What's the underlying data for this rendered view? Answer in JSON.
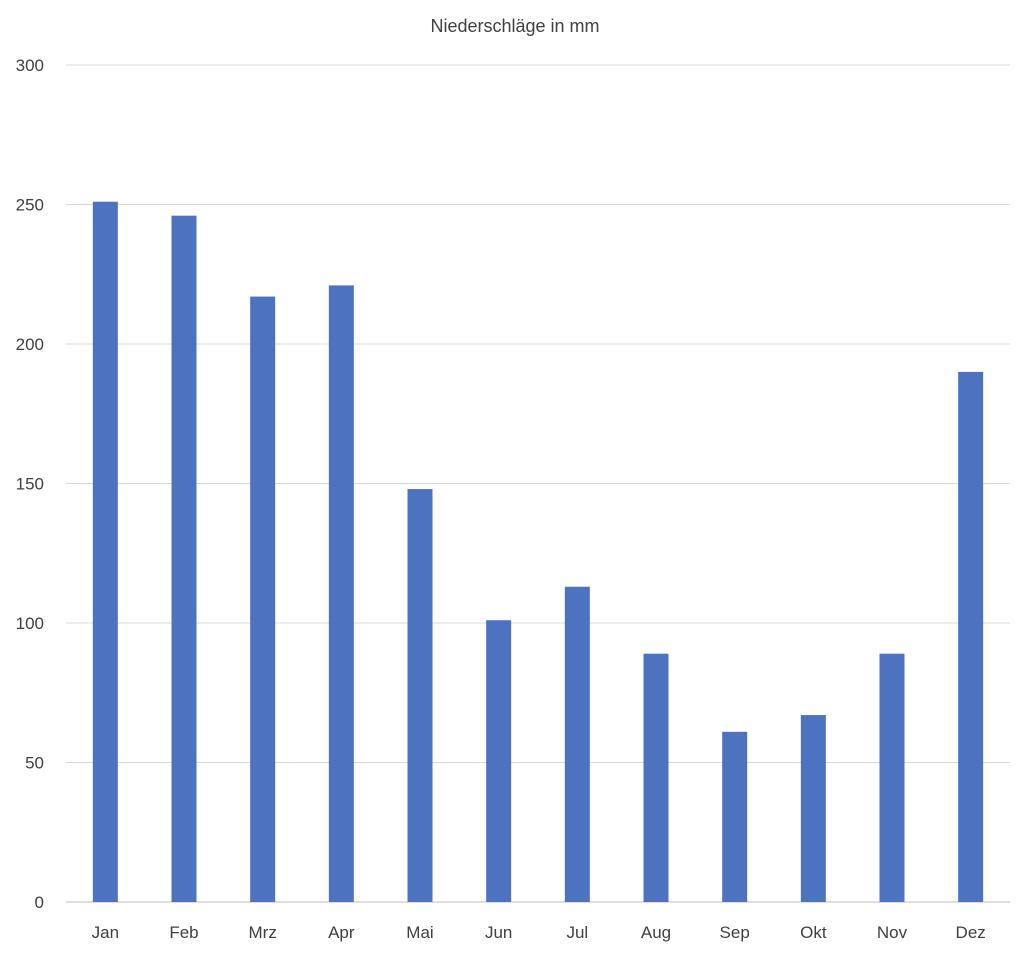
{
  "chart_data": {
    "type": "bar",
    "title": "Niederschläge in mm",
    "xlabel": "",
    "ylabel": "",
    "categories": [
      "Jan",
      "Feb",
      "Mrz",
      "Apr",
      "Mai",
      "Jun",
      "Jul",
      "Aug",
      "Sep",
      "Okt",
      "Nov",
      "Dez"
    ],
    "values": [
      251,
      246,
      217,
      221,
      148,
      101,
      113,
      89,
      61,
      67,
      89,
      190
    ],
    "ylim": [
      0,
      300
    ],
    "yticks": [
      0,
      50,
      100,
      150,
      200,
      250,
      300
    ],
    "grid": true,
    "legend": "none",
    "colors": {
      "bar": "#4c72c0",
      "grid": "#d9d9d9",
      "axis": "#bfbfbf",
      "text": "#404040"
    }
  }
}
